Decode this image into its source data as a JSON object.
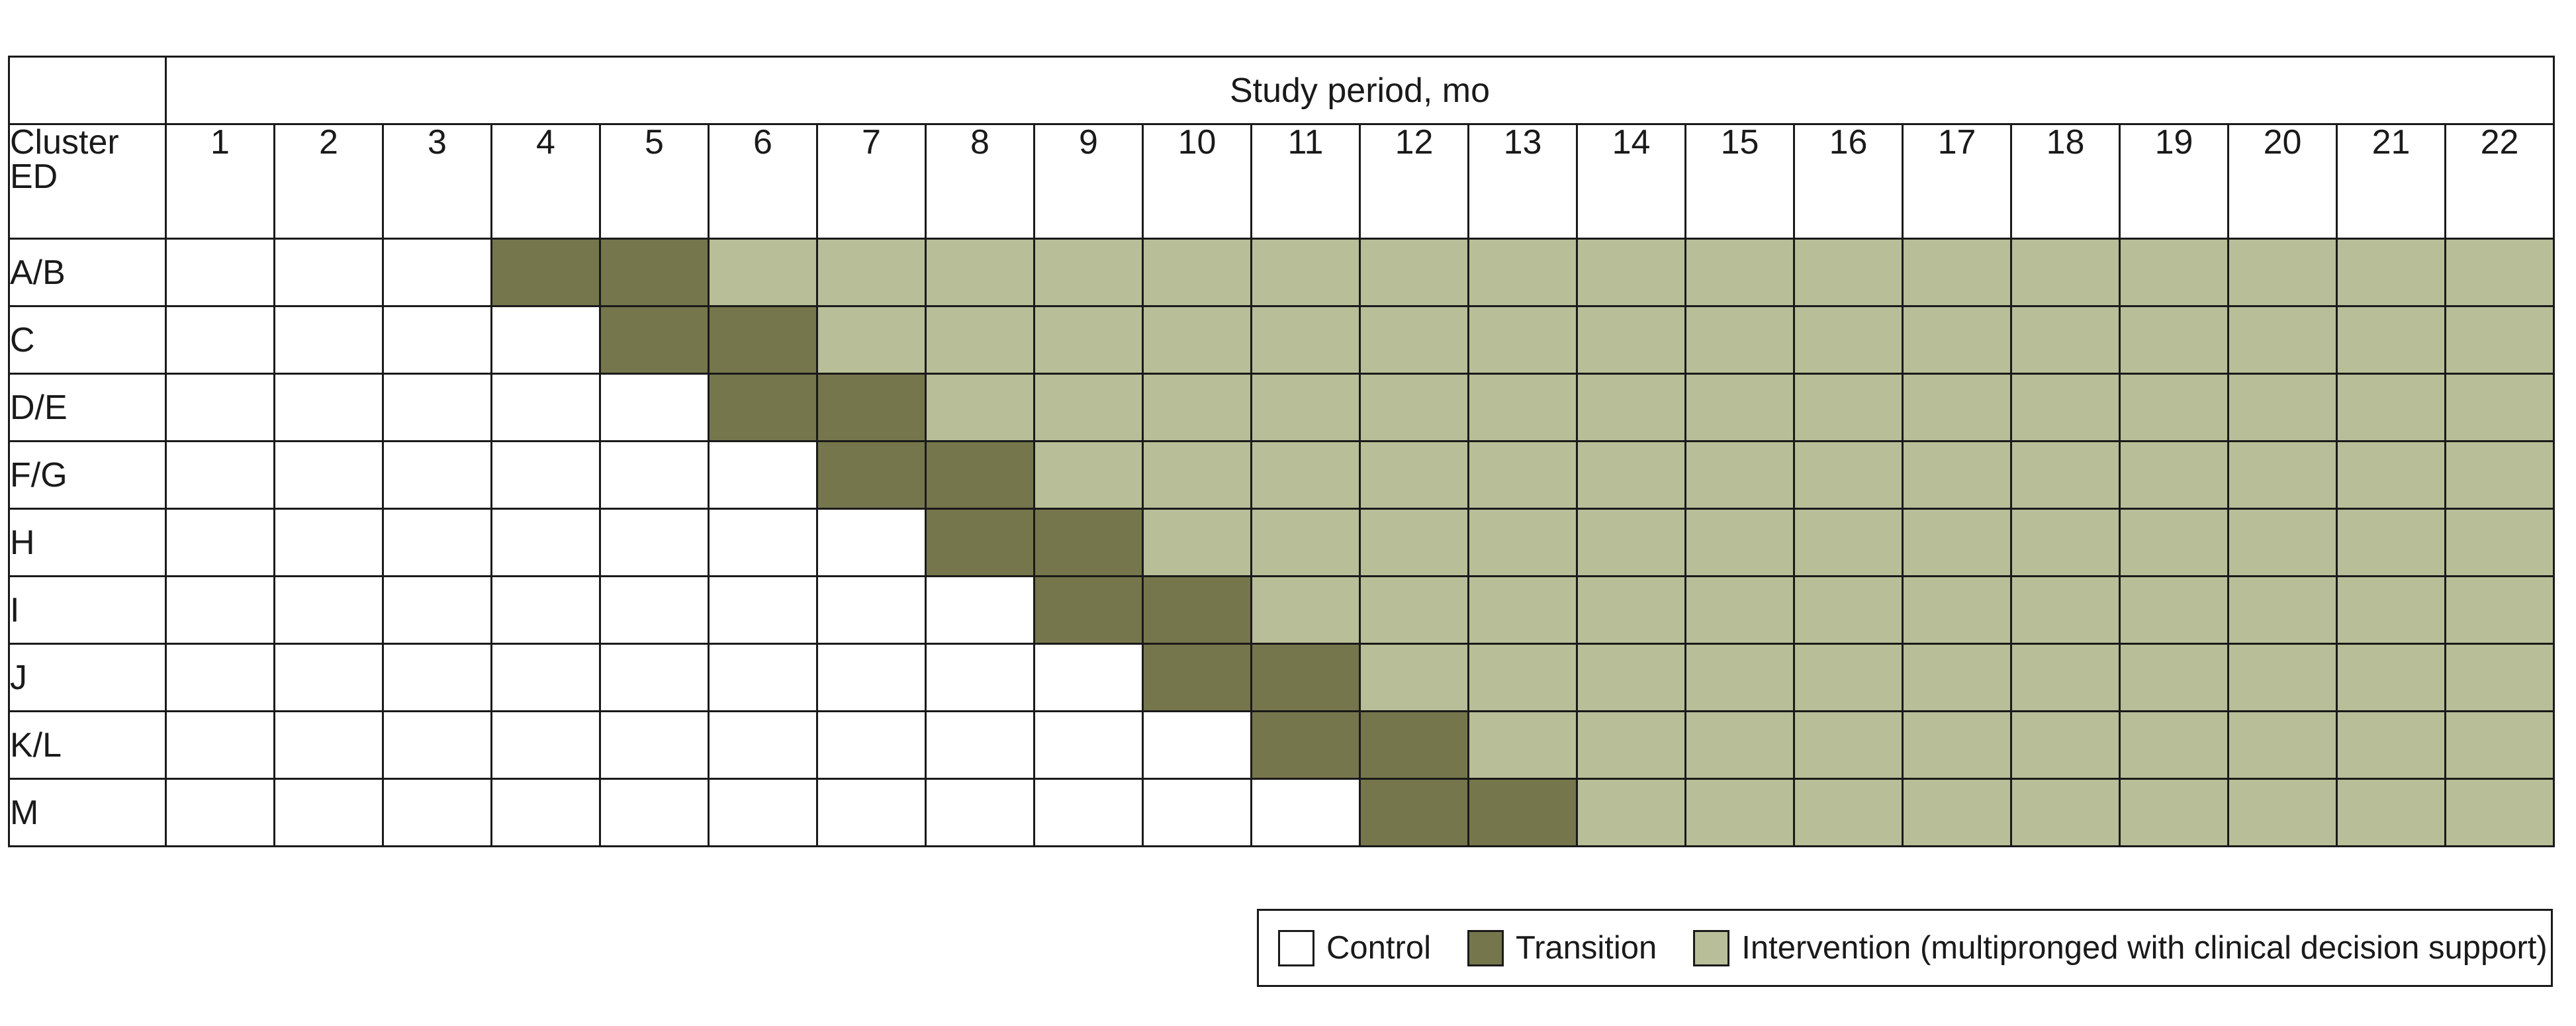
{
  "table": {
    "header_title": "Study period, mo",
    "cluster_header": [
      "Cluster",
      "ED"
    ],
    "months": [
      "1",
      "2",
      "3",
      "4",
      "5",
      "6",
      "7",
      "8",
      "9",
      "10",
      "11",
      "12",
      "13",
      "14",
      "15",
      "16",
      "17",
      "18",
      "19",
      "20",
      "21",
      "22"
    ],
    "clusters": [
      {
        "label": "A/B",
        "transition_start": 4
      },
      {
        "label": "C",
        "transition_start": 5
      },
      {
        "label": "D/E",
        "transition_start": 6
      },
      {
        "label": "F/G",
        "transition_start": 7
      },
      {
        "label": "H",
        "transition_start": 8
      },
      {
        "label": "I",
        "transition_start": 9
      },
      {
        "label": "J",
        "transition_start": 10
      },
      {
        "label": "K/L",
        "transition_start": 11
      },
      {
        "label": "M",
        "transition_start": 12
      }
    ],
    "transition_months": 2
  },
  "legend": {
    "control": "Control",
    "transition": "Transition",
    "intervention": "Intervention (multipronged with clinical decision support)"
  },
  "colors": {
    "control": "#ffffff",
    "transition": "#75764b",
    "intervention": "#b8be97",
    "border": "#1a1a1a"
  }
}
